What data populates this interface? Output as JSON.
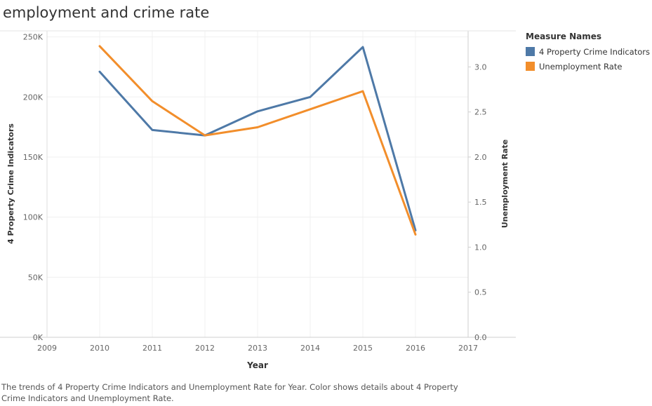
{
  "page": {
    "title": "employment and crime rate",
    "caption": "The trends of 4 Property Crime Indicators and Unemployment Rate for Year.  Color shows details about 4 Property Crime Indicators and Unemployment Rate."
  },
  "legend": {
    "title": "Measure Names",
    "items": [
      {
        "label": "4 Property Crime Indicators",
        "color": "#4e79a7"
      },
      {
        "label": "Unemployment Rate",
        "color": "#f28e2b"
      }
    ]
  },
  "chart_data": {
    "type": "line",
    "x_label": "Year",
    "y_left_label": "4 Property Crime Indicators",
    "y_right_label": "Unemployment Rate",
    "x_ticks": [
      "2009",
      "2010",
      "2011",
      "2012",
      "2013",
      "2014",
      "2015",
      "2016",
      "2017"
    ],
    "x_range": [
      2009,
      2017
    ],
    "y_left_range": [
      0,
      255000
    ],
    "y_left_ticks": [
      {
        "value": 0,
        "label": "0K"
      },
      {
        "value": 50000,
        "label": "50K"
      },
      {
        "value": 100000,
        "label": "100K"
      },
      {
        "value": 150000,
        "label": "150K"
      },
      {
        "value": 200000,
        "label": "200K"
      },
      {
        "value": 250000,
        "label": "250K"
      }
    ],
    "y_right_range": [
      0,
      3.4
    ],
    "y_right_ticks": [
      {
        "value": 0,
        "label": "0.0"
      },
      {
        "value": 0.5,
        "label": "0.5"
      },
      {
        "value": 1.0,
        "label": "1.0"
      },
      {
        "value": 1.5,
        "label": "1.5"
      },
      {
        "value": 2.0,
        "label": "2.0"
      },
      {
        "value": 2.5,
        "label": "2.5"
      },
      {
        "value": 3.0,
        "label": "3.0"
      }
    ],
    "series": [
      {
        "name": "4 Property Crime Indicators",
        "axis": "left",
        "color": "#4e79a7",
        "x": [
          2010,
          2011,
          2012,
          2013,
          2014,
          2015,
          2016
        ],
        "values": [
          221000,
          172500,
          168000,
          188000,
          200000,
          241500,
          89000
        ]
      },
      {
        "name": "Unemployment Rate",
        "axis": "right",
        "color": "#f28e2b",
        "x": [
          2010,
          2011,
          2012,
          2013,
          2014,
          2015,
          2016
        ],
        "values": [
          3.23,
          2.62,
          2.24,
          2.33,
          2.53,
          2.73,
          1.14
        ]
      }
    ],
    "grid": true,
    "legend_position": "right"
  }
}
